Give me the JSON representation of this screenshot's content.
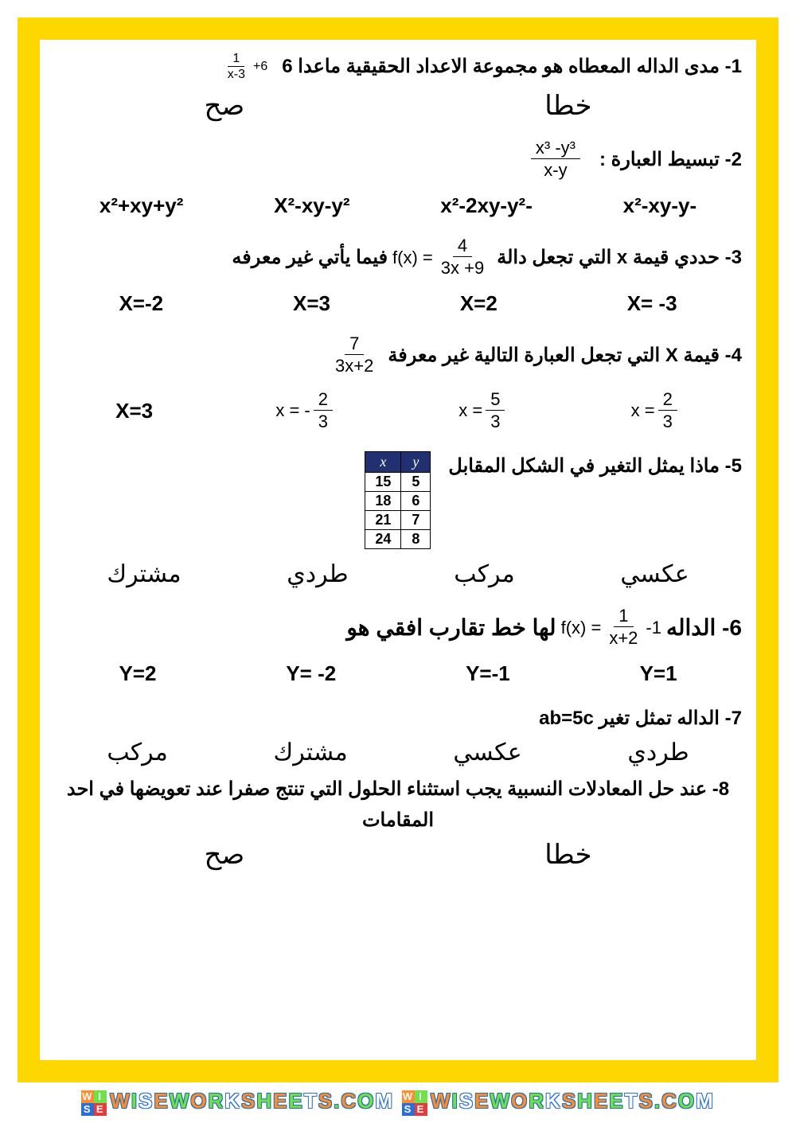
{
  "frame_border_color": "#ffd700",
  "q1": {
    "text": "1- مدى الداله المعطاه هو مجموعة الاعداد الحقيقية ماعدا 6",
    "frac_num": "1",
    "frac_den": "x-3",
    "plus": "+6",
    "true": "صح",
    "false": "خطا"
  },
  "q2": {
    "text": "2- تبسيط العبارة :",
    "frac_num": "x³ -y³",
    "frac_den": "x-y",
    "opts": [
      "x²+xy+y²",
      "X²-xy-y²",
      "-x²-2xy-y²",
      "-x²-xy-y"
    ]
  },
  "q3": {
    "text_a": "3- حددي قيمة x التي تجعل دالة ",
    "fx": "f(x) =",
    "frac_num": "4",
    "frac_den": "3x +9",
    "text_b": " فيما يأتي غير معرفه",
    "opts": [
      "X=-2",
      "X=3",
      "X=2",
      "X= -3"
    ]
  },
  "q4": {
    "text": "4- قيمة X التي تجعل العبارة التالية غير معرفة ",
    "frac_num": "7",
    "frac_den": "3x+2",
    "opt1": "X=3",
    "opt2_pre": "x = -",
    "opt2_num": "2",
    "opt2_den": "3",
    "opt3_pre": "x =",
    "opt3_num": "5",
    "opt3_den": "3",
    "opt4_pre": "x =",
    "opt4_num": "2",
    "opt4_den": "3"
  },
  "q5": {
    "text": "5- ماذا يمثل التغير في الشكل المقابل",
    "table": {
      "head_x": "x",
      "head_y": "y",
      "rows": [
        [
          "15",
          "5"
        ],
        [
          "18",
          "6"
        ],
        [
          "21",
          "7"
        ],
        [
          "24",
          "8"
        ]
      ]
    },
    "opts": [
      "مشترك",
      "طردي",
      "مركب",
      "عكسي"
    ]
  },
  "q6": {
    "text_a": "6- الداله  ",
    "fx": "f(x) =",
    "frac_num": "1",
    "frac_den": "x+2",
    "minus": "-1",
    "text_b": " لها خط تقارب افقي  هو",
    "opts": [
      "Y=2",
      "Y= -2",
      "Y=-1",
      "Y=1"
    ]
  },
  "q7": {
    "text": "7- الداله تمثل تغير ab=5c",
    "opts": [
      "مركب",
      "مشترك",
      "عكسي",
      "طردي"
    ]
  },
  "q8": {
    "text": "8- عند حل المعادلات النسبية يجب استثناء الحلول التي تنتج صفرا عند تعويضها في احد المقامات",
    "true": "صح",
    "false": "خطا"
  },
  "watermark": "WISEWORKSHEETS.COM",
  "wm_logo": "WISE"
}
